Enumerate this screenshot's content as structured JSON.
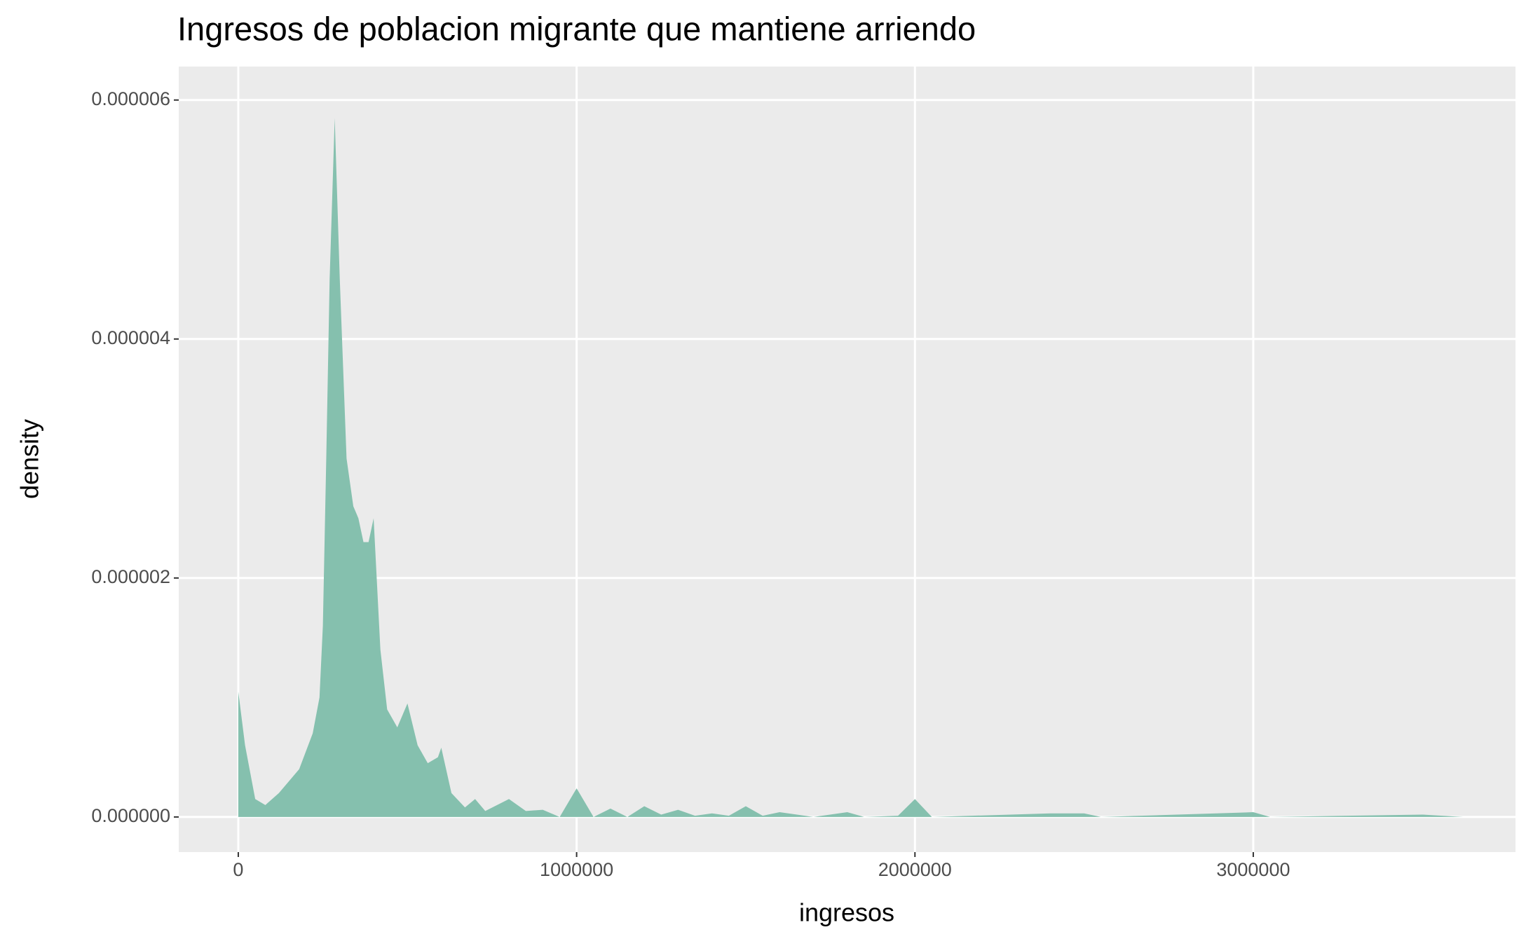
{
  "chart_data": {
    "type": "area",
    "title": "Ingresos de poblacion migrante que mantiene arriendo",
    "x_label": "ingresos",
    "y_label": "density",
    "color": "#85c0ae",
    "grid": true,
    "x": [
      0,
      20000,
      50000,
      80000,
      120000,
      180000,
      220000,
      240000,
      250000,
      260000,
      270000,
      285000,
      300000,
      320000,
      340000,
      355000,
      370000,
      385000,
      400000,
      420000,
      440000,
      470000,
      500000,
      530000,
      560000,
      590000,
      600000,
      630000,
      670000,
      700000,
      730000,
      800000,
      850000,
      900000,
      950000,
      1000000,
      1050000,
      1100000,
      1150000,
      1200000,
      1250000,
      1300000,
      1350000,
      1400000,
      1450000,
      1500000,
      1550000,
      1600000,
      1700000,
      1800000,
      1850000,
      1950000,
      2000000,
      2050000,
      2400000,
      2500000,
      2550000,
      3000000,
      3050000,
      3500000,
      3620000
    ],
    "y": [
      1.05e-06,
      6e-07,
      1.5e-07,
      1e-07,
      2e-07,
      4e-07,
      7e-07,
      1e-06,
      1.6e-06,
      3e-06,
      4.5e-06,
      5.85e-06,
      4.5e-06,
      3e-06,
      2.6e-06,
      2.5e-06,
      2.3e-06,
      2.3e-06,
      2.5e-06,
      1.4e-06,
      9e-07,
      7.5e-07,
      9.5e-07,
      6e-07,
      4.5e-07,
      5e-07,
      5.8e-07,
      2e-07,
      8e-08,
      1.5e-07,
      5e-08,
      1.5e-07,
      5e-08,
      6e-08,
      0,
      2.4e-07,
      0,
      7e-08,
      0,
      9e-08,
      2e-08,
      6e-08,
      1e-08,
      3e-08,
      1e-08,
      9e-08,
      1e-08,
      4e-08,
      0,
      4e-08,
      0,
      1e-08,
      1.5e-07,
      0,
      3e-08,
      3e-08,
      0,
      4e-08,
      0,
      2e-08,
      0
    ],
    "xlim": [
      -176000,
      3775000
    ],
    "ylim": [
      -2.94e-07,
      6.28e-06
    ],
    "xticks": [
      0,
      1000000,
      2000000,
      3000000
    ],
    "yticks": [
      {
        "value": 0,
        "label": "0.000000"
      },
      {
        "value": 2e-06,
        "label": "0.000002"
      },
      {
        "value": 4e-06,
        "label": "0.000004"
      },
      {
        "value": 6e-06,
        "label": "0.000006"
      }
    ]
  }
}
